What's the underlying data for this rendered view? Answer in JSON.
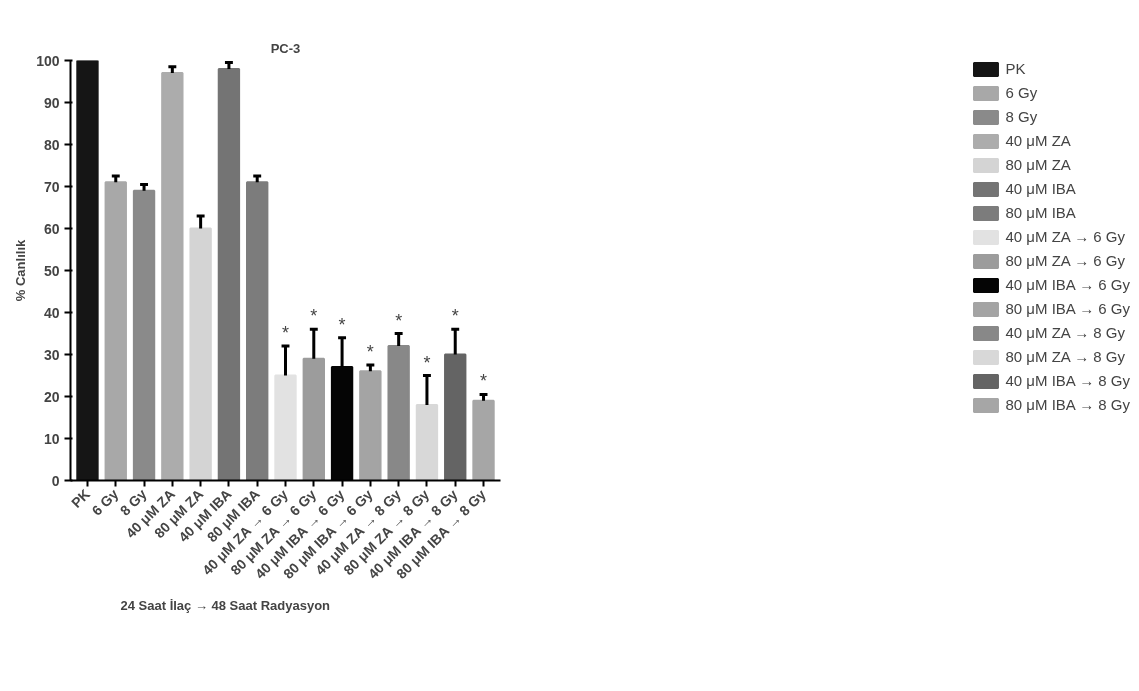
{
  "chart_data": {
    "type": "bar",
    "title": "PC-3",
    "xlabel": "24 Saat İlaç → 48 Saat Radyasyon",
    "ylabel": "% Canlılık",
    "categories": [
      "PK",
      "6 Gy",
      "8 Gy",
      "40 μM ZA",
      "80 μM ZA",
      "40 μM IBA",
      "80 μM IBA",
      "40 μM ZA → 6 Gy",
      "80 μM ZA → 6 Gy",
      "40 μM IBA → 6 Gy",
      "80 μM IBA → 6 Gy",
      "40 μM ZA → 8 Gy",
      "80 μM ZA → 8 Gy",
      "40 μM IBA → 8 Gy",
      "80 μM IBA → 8 Gy"
    ],
    "series": [
      {
        "name": "PK",
        "color": "#151515",
        "values": [
          100,
          null,
          null,
          null,
          null,
          null,
          null,
          null,
          null,
          null,
          null,
          null,
          null,
          null,
          null
        ]
      },
      {
        "name": "6 Gy",
        "color": "#a8a8a8",
        "values": [
          null,
          71,
          null,
          null,
          null,
          null,
          null,
          null,
          null,
          null,
          null,
          null,
          null,
          null,
          null
        ],
        "errors": [
          null,
          [
            71,
            72.5
          ],
          null,
          null,
          null,
          null,
          null,
          null,
          null,
          null,
          null,
          null,
          null,
          null,
          null
        ]
      },
      {
        "name": "8 Gy",
        "color": "#8a8a8a",
        "values": [
          null,
          null,
          69,
          null,
          null,
          null,
          null,
          null,
          null,
          null,
          null,
          null,
          null,
          null,
          null
        ],
        "errors": [
          null,
          null,
          [
            69,
            70.5
          ],
          null,
          null,
          null,
          null,
          null,
          null,
          null,
          null,
          null,
          null,
          null,
          null
        ]
      },
      {
        "name": "40 μM ZA",
        "color": "#acacac",
        "values": [
          null,
          null,
          null,
          97,
          null,
          null,
          null,
          null,
          null,
          null,
          null,
          null,
          null,
          null,
          null
        ],
        "errors": [
          null,
          null,
          null,
          [
            97,
            98.5
          ],
          null,
          null,
          null,
          null,
          null,
          null,
          null,
          null,
          null,
          null,
          null
        ]
      },
      {
        "name": "80 μM ZA",
        "color": "#d4d4d4",
        "values": [
          null,
          null,
          null,
          null,
          60,
          null,
          null,
          null,
          null,
          null,
          null,
          null,
          null,
          null,
          null
        ],
        "errors": [
          null,
          null,
          null,
          null,
          [
            60,
            63
          ],
          null,
          null,
          null,
          null,
          null,
          null,
          null,
          null,
          null,
          null
        ]
      },
      {
        "name": "40 μM IBA",
        "color": "#747474",
        "values": [
          null,
          null,
          null,
          null,
          null,
          98,
          null,
          null,
          null,
          null,
          null,
          null,
          null,
          null,
          null
        ],
        "errors": [
          null,
          null,
          null,
          null,
          null,
          [
            98,
            99.5
          ],
          null,
          null,
          null,
          null,
          null,
          null,
          null,
          null,
          null
        ]
      },
      {
        "name": "80 μM IBA",
        "color": "#7c7c7c",
        "values": [
          null,
          null,
          null,
          null,
          null,
          null,
          71,
          null,
          null,
          null,
          null,
          null,
          null,
          null,
          null
        ],
        "errors": [
          null,
          null,
          null,
          null,
          null,
          null,
          [
            71,
            72.5
          ],
          null,
          null,
          null,
          null,
          null,
          null,
          null,
          null
        ]
      },
      {
        "name": "40 μM ZA → 6 Gy",
        "color": "#e2e2e2",
        "values": [
          null,
          null,
          null,
          null,
          null,
          null,
          null,
          25,
          null,
          null,
          null,
          null,
          null,
          null,
          null
        ],
        "errors": [
          null,
          null,
          null,
          null,
          null,
          null,
          null,
          [
            25,
            32
          ],
          null,
          null,
          null,
          null,
          null,
          null,
          null
        ]
      },
      {
        "name": "80 μM ZA → 6 Gy",
        "color": "#9c9c9c",
        "values": [
          null,
          null,
          null,
          null,
          null,
          null,
          null,
          null,
          29,
          null,
          null,
          null,
          null,
          null,
          null
        ],
        "errors": [
          null,
          null,
          null,
          null,
          null,
          null,
          null,
          null,
          [
            29,
            36
          ],
          null,
          null,
          null,
          null,
          null,
          null
        ]
      },
      {
        "name": "40 μM IBA → 6 Gy",
        "color": "#050505",
        "values": [
          null,
          null,
          null,
          null,
          null,
          null,
          null,
          null,
          null,
          27,
          null,
          null,
          null,
          null,
          null
        ],
        "errors": [
          null,
          null,
          null,
          null,
          null,
          null,
          null,
          null,
          null,
          [
            27,
            34
          ],
          null,
          null,
          null,
          null,
          null
        ]
      },
      {
        "name": "80 μM IBA → 6 Gy",
        "color": "#a4a4a4",
        "values": [
          null,
          null,
          null,
          null,
          null,
          null,
          null,
          null,
          null,
          null,
          26,
          null,
          null,
          null,
          null
        ],
        "errors": [
          null,
          null,
          null,
          null,
          null,
          null,
          null,
          null,
          null,
          null,
          [
            26,
            27.5
          ],
          null,
          null,
          null,
          null
        ]
      },
      {
        "name": "40 μM ZA → 8 Gy",
        "color": "#888888",
        "values": [
          null,
          null,
          null,
          null,
          null,
          null,
          null,
          null,
          null,
          null,
          null,
          32,
          null,
          null,
          null
        ],
        "errors": [
          null,
          null,
          null,
          null,
          null,
          null,
          null,
          null,
          null,
          null,
          null,
          [
            32,
            35
          ],
          null,
          null,
          null
        ]
      },
      {
        "name": "80 μM ZA → 8 Gy",
        "color": "#d8d8d8",
        "values": [
          null,
          null,
          null,
          null,
          null,
          null,
          null,
          null,
          null,
          null,
          null,
          null,
          18,
          null,
          null
        ],
        "errors": [
          null,
          null,
          null,
          null,
          null,
          null,
          null,
          null,
          null,
          null,
          null,
          null,
          [
            18,
            25
          ],
          null,
          null
        ]
      },
      {
        "name": "40 μM IBA → 8 Gy",
        "color": "#646464",
        "values": [
          null,
          null,
          null,
          null,
          null,
          null,
          null,
          null,
          null,
          null,
          null,
          null,
          null,
          30,
          null
        ],
        "errors": [
          null,
          null,
          null,
          null,
          null,
          null,
          null,
          null,
          null,
          null,
          null,
          null,
          null,
          [
            30,
            36
          ],
          null
        ]
      },
      {
        "name": "80 μM IBA → 8 Gy",
        "color": "#a6a6a6",
        "values": [
          null,
          null,
          null,
          null,
          null,
          null,
          null,
          null,
          null,
          null,
          null,
          null,
          null,
          null,
          19
        ],
        "errors": [
          null,
          null,
          null,
          null,
          null,
          null,
          null,
          null,
          null,
          null,
          null,
          null,
          null,
          null,
          [
            19,
            20.5
          ]
        ]
      }
    ],
    "ylim": [
      0,
      100
    ],
    "yticks": [
      0,
      10,
      20,
      30,
      40,
      50,
      60,
      70,
      80,
      90,
      100
    ],
    "grid": false,
    "legend": "right",
    "annotations": [
      {
        "text": "*",
        "x": "40 μM ZA → 6 Gy",
        "y": 32
      },
      {
        "text": "*",
        "x": "80 μM ZA → 6 Gy",
        "y": 36
      },
      {
        "text": "*",
        "x": "40 μM IBA → 6 Gy",
        "y": 34
      },
      {
        "text": "*",
        "x": "80 μM IBA → 6 Gy",
        "y": 27.5
      },
      {
        "text": "*",
        "x": "40 μM ZA → 8 Gy",
        "y": 35
      },
      {
        "text": "*",
        "x": "80 μM ZA → 8 Gy",
        "y": 25
      },
      {
        "text": "*",
        "x": "40 μM IBA → 8 Gy",
        "y": 36
      },
      {
        "text": "*",
        "x": "80 μM IBA → 8 Gy",
        "y": 20.5
      }
    ]
  }
}
